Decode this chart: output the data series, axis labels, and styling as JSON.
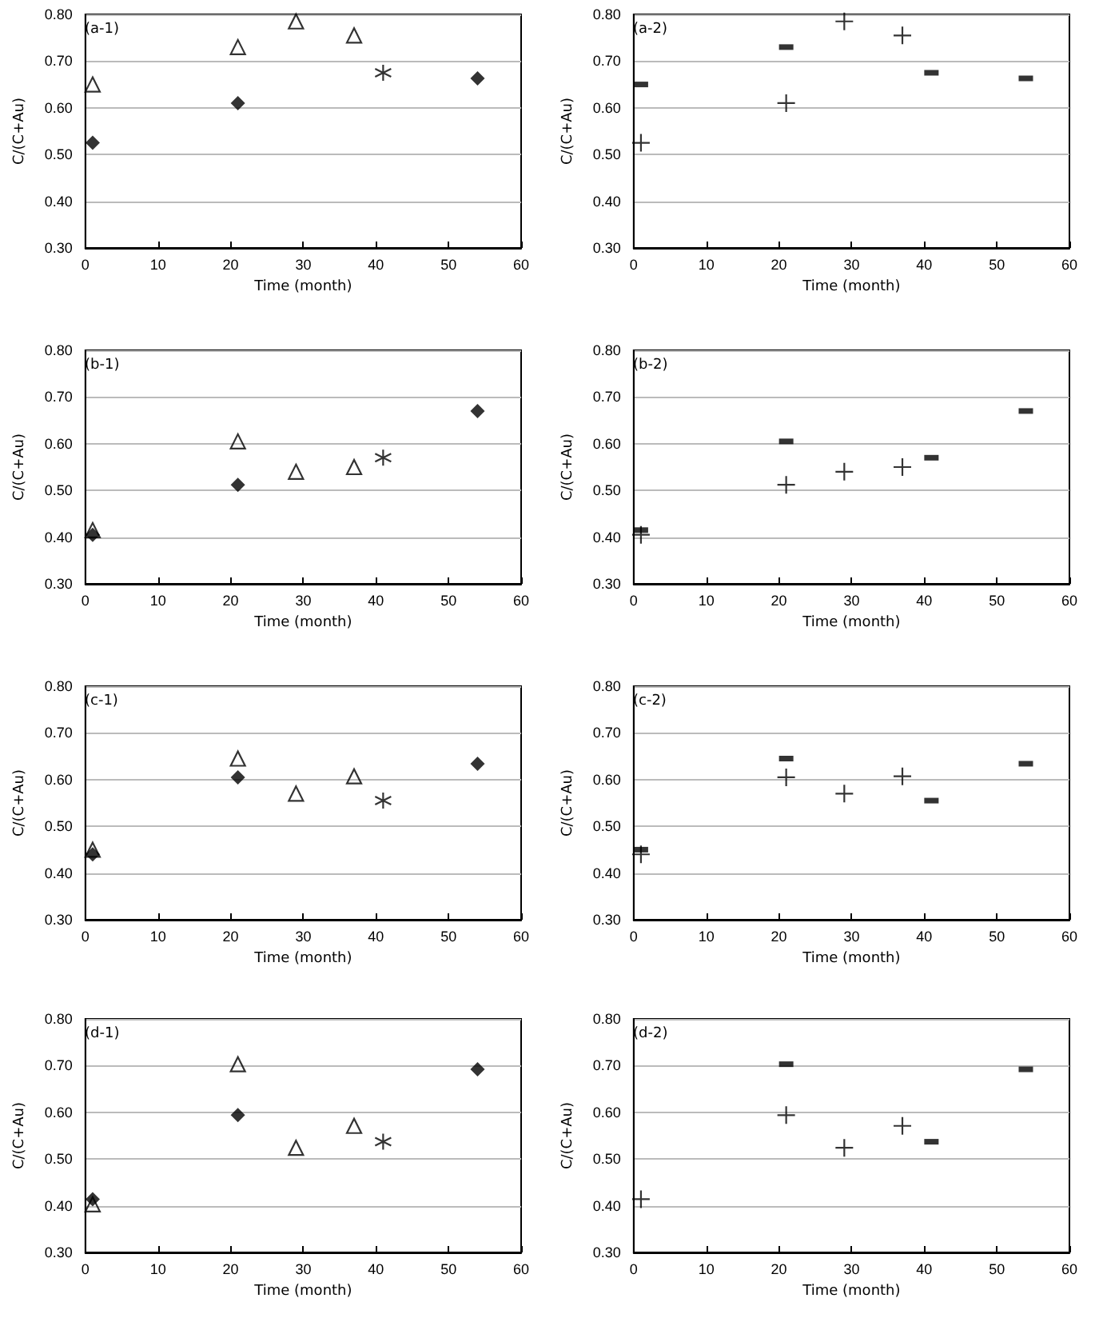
{
  "chart_data": [
    {
      "type": "scatter",
      "annotations": [
        "(a-1)"
      ],
      "xlabel": "Time (month)",
      "ylabel": "C/(C+Au)",
      "xlim": [
        0,
        60
      ],
      "xticks": [
        0,
        10,
        20,
        30,
        40,
        50,
        60
      ],
      "ylim": [
        0.3,
        0.8
      ],
      "yticks": [
        {
          "value": 0.3,
          "label": "0.30"
        },
        {
          "value": 0.4,
          "label": "0.40"
        },
        {
          "value": 0.5,
          "label": "0.50"
        },
        {
          "value": 0.6,
          "label": "0.60"
        },
        {
          "value": 0.7,
          "label": "0.70"
        },
        {
          "value": 0.8,
          "label": "0.80"
        }
      ],
      "grid": "y",
      "series": [
        {
          "marker": "triangle",
          "color": "#000000",
          "x": [
            1,
            21,
            29,
            37
          ],
          "values": [
            0.65,
            0.73,
            0.785,
            0.755
          ]
        },
        {
          "marker": "diamond",
          "color": "#000000",
          "x": [
            1,
            21,
            54
          ],
          "values": [
            0.525,
            0.61,
            0.663
          ]
        },
        {
          "marker": "cross",
          "color": "#000000",
          "x": [
            41
          ],
          "values": [
            0.675
          ]
        }
      ]
    },
    {
      "type": "scatter",
      "annotations": [
        "(a-2)"
      ],
      "xlabel": "Time (month)",
      "ylabel": "C/(C+Au)",
      "xlim": [
        0,
        60
      ],
      "xticks": [
        0,
        10,
        20,
        30,
        40,
        50,
        60
      ],
      "ylim": [
        0.3,
        0.8
      ],
      "yticks": [
        {
          "value": 0.3,
          "label": "0.30"
        },
        {
          "value": 0.4,
          "label": "0.40"
        },
        {
          "value": 0.5,
          "label": "0.50"
        },
        {
          "value": 0.6,
          "label": "0.60"
        },
        {
          "value": 0.7,
          "label": "0.70"
        },
        {
          "value": 0.8,
          "label": "0.80"
        }
      ],
      "grid": "y",
      "series": [
        {
          "marker": "cross",
          "color": "#000000",
          "x": [
            1,
            21,
            29,
            37
          ],
          "values": [
            0.525,
            0.61,
            0.785,
            0.755
          ]
        },
        {
          "marker": "square",
          "color": "#000000",
          "x": [
            1,
            21,
            41,
            54
          ],
          "values": [
            0.65,
            0.73,
            0.675,
            0.663
          ]
        }
      ]
    },
    {
      "type": "scatter",
      "annotations": [
        "(b-1)"
      ],
      "xlabel": "Time (month)",
      "ylabel": "C/(C+Au)",
      "xlim": [
        0,
        60
      ],
      "xticks": [
        0,
        10,
        20,
        30,
        40,
        50,
        60
      ],
      "ylim": [
        0.3,
        0.8
      ],
      "yticks": [
        {
          "value": 0.3,
          "label": "0.30"
        },
        {
          "value": 0.4,
          "label": "0.40"
        },
        {
          "value": 0.5,
          "label": "0.50"
        },
        {
          "value": 0.6,
          "label": "0.60"
        },
        {
          "value": 0.7,
          "label": "0.70"
        },
        {
          "value": 0.8,
          "label": "0.80"
        }
      ],
      "grid": "y",
      "series": [
        {
          "marker": "triangle",
          "color": "#000000",
          "x": [
            1,
            21,
            29,
            37
          ],
          "values": [
            0.415,
            0.605,
            0.54,
            0.55
          ]
        },
        {
          "marker": "diamond",
          "color": "#000000",
          "x": [
            1,
            21,
            54
          ],
          "values": [
            0.405,
            0.512,
            0.67
          ]
        },
        {
          "marker": "cross",
          "color": "#000000",
          "x": [
            41
          ],
          "values": [
            0.57
          ]
        }
      ]
    },
    {
      "type": "scatter",
      "annotations": [
        "(b-2)"
      ],
      "xlabel": "Time (month)",
      "ylabel": "C/(C+Au)",
      "xlim": [
        0,
        60
      ],
      "xticks": [
        0,
        10,
        20,
        30,
        40,
        50,
        60
      ],
      "ylim": [
        0.3,
        0.8
      ],
      "yticks": [
        {
          "value": 0.3,
          "label": "0.30"
        },
        {
          "value": 0.4,
          "label": "0.40"
        },
        {
          "value": 0.5,
          "label": "0.50"
        },
        {
          "value": 0.6,
          "label": "0.60"
        },
        {
          "value": 0.7,
          "label": "0.70"
        },
        {
          "value": 0.8,
          "label": "0.80"
        }
      ],
      "grid": "y",
      "series": [
        {
          "marker": "cross",
          "color": "#000000",
          "x": [
            1,
            21,
            29,
            37
          ],
          "values": [
            0.405,
            0.512,
            0.54,
            0.55
          ]
        },
        {
          "marker": "square",
          "color": "#000000",
          "x": [
            1,
            21,
            41,
            54
          ],
          "values": [
            0.415,
            0.605,
            0.57,
            0.67
          ]
        }
      ]
    },
    {
      "type": "scatter",
      "annotations": [
        "(c-1)"
      ],
      "xlabel": "Time (month)",
      "ylabel": "C/(C+Au)",
      "xlim": [
        0,
        60
      ],
      "xticks": [
        0,
        10,
        20,
        30,
        40,
        50,
        60
      ],
      "ylim": [
        0.3,
        0.8
      ],
      "yticks": [
        {
          "value": 0.3,
          "label": "0.30"
        },
        {
          "value": 0.4,
          "label": "0.40"
        },
        {
          "value": 0.5,
          "label": "0.50"
        },
        {
          "value": 0.6,
          "label": "0.60"
        },
        {
          "value": 0.7,
          "label": "0.70"
        },
        {
          "value": 0.8,
          "label": "0.80"
        }
      ],
      "grid": "y",
      "series": [
        {
          "marker": "triangle",
          "color": "#000000",
          "x": [
            1,
            21,
            29,
            37
          ],
          "values": [
            0.45,
            0.645,
            0.57,
            0.607
          ]
        },
        {
          "marker": "diamond",
          "color": "#000000",
          "x": [
            1,
            21,
            54
          ],
          "values": [
            0.44,
            0.605,
            0.634
          ]
        },
        {
          "marker": "cross",
          "color": "#000000",
          "x": [
            41
          ],
          "values": [
            0.555
          ]
        }
      ]
    },
    {
      "type": "scatter",
      "annotations": [
        "(c-2)"
      ],
      "xlabel": "Time (month)",
      "ylabel": "C/(C+Au)",
      "xlim": [
        0,
        60
      ],
      "xticks": [
        0,
        10,
        20,
        30,
        40,
        50,
        60
      ],
      "ylim": [
        0.3,
        0.8
      ],
      "yticks": [
        {
          "value": 0.3,
          "label": "0.30"
        },
        {
          "value": 0.4,
          "label": "0.40"
        },
        {
          "value": 0.5,
          "label": "0.50"
        },
        {
          "value": 0.6,
          "label": "0.60"
        },
        {
          "value": 0.7,
          "label": "0.70"
        },
        {
          "value": 0.8,
          "label": "0.80"
        }
      ],
      "grid": "y",
      "series": [
        {
          "marker": "cross",
          "color": "#000000",
          "x": [
            1,
            21,
            29,
            37
          ],
          "values": [
            0.44,
            0.605,
            0.57,
            0.607
          ]
        },
        {
          "marker": "square",
          "color": "#000000",
          "x": [
            1,
            21,
            41,
            54
          ],
          "values": [
            0.45,
            0.645,
            0.555,
            0.634
          ]
        }
      ]
    },
    {
      "type": "scatter",
      "annotations": [
        "(d-1)"
      ],
      "xlabel": "Time (month)",
      "ylabel": "C/(C+Au)",
      "xlim": [
        0,
        60
      ],
      "xticks": [
        0,
        10,
        20,
        30,
        40,
        50,
        60
      ],
      "ylim": [
        0.3,
        0.8
      ],
      "yticks": [
        {
          "value": 0.3,
          "label": "0.30"
        },
        {
          "value": 0.4,
          "label": "0.40"
        },
        {
          "value": 0.5,
          "label": "0.50"
        },
        {
          "value": 0.6,
          "label": "0.60"
        },
        {
          "value": 0.7,
          "label": "0.70"
        },
        {
          "value": 0.8,
          "label": "0.80"
        }
      ],
      "grid": "y",
      "series": [
        {
          "marker": "triangle",
          "color": "#000000",
          "x": [
            1,
            21,
            29,
            37
          ],
          "values": [
            0.403,
            0.703,
            0.524,
            0.571
          ]
        },
        {
          "marker": "diamond",
          "color": "#000000",
          "x": [
            1,
            21,
            54
          ],
          "values": [
            0.414,
            0.594,
            0.692
          ]
        },
        {
          "marker": "cross",
          "color": "#000000",
          "x": [
            41
          ],
          "values": [
            0.537
          ]
        }
      ]
    },
    {
      "type": "scatter",
      "annotations": [
        "(d-2)"
      ],
      "xlabel": "Time (month)",
      "ylabel": "C/(C+Au)",
      "xlim": [
        0,
        60
      ],
      "xticks": [
        0,
        10,
        20,
        30,
        40,
        50,
        60
      ],
      "ylim": [
        0.3,
        0.8
      ],
      "yticks": [
        {
          "value": 0.3,
          "label": "0.30"
        },
        {
          "value": 0.4,
          "label": "0.40"
        },
        {
          "value": 0.5,
          "label": "0.50"
        },
        {
          "value": 0.6,
          "label": "0.60"
        },
        {
          "value": 0.7,
          "label": "0.70"
        },
        {
          "value": 0.8,
          "label": "0.80"
        }
      ],
      "grid": "y",
      "series": [
        {
          "marker": "cross",
          "color": "#000000",
          "x": [
            1,
            21,
            29,
            37
          ],
          "values": [
            0.414,
            0.594,
            0.524,
            0.571
          ]
        },
        {
          "marker": "square",
          "color": "#000000",
          "x": [
            21,
            41,
            54
          ],
          "values": [
            0.703,
            0.537,
            0.692
          ]
        }
      ]
    }
  ]
}
